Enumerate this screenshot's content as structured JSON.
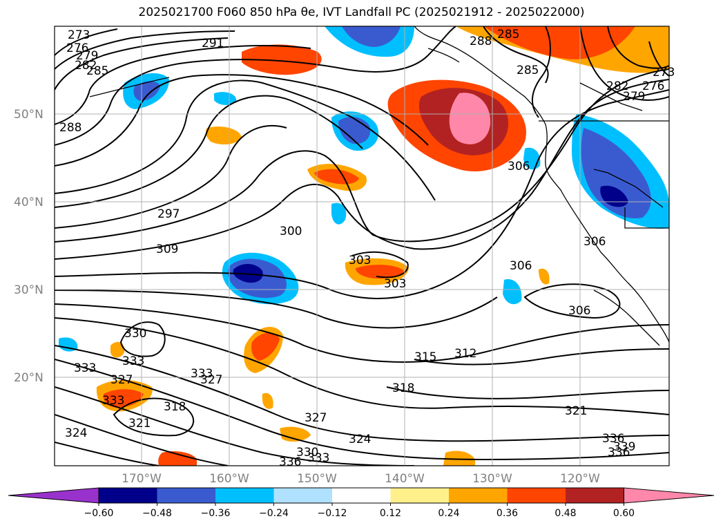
{
  "title": "2025021700 F060 850 hPa θe, IVT Landfall PC (2025021912 - 2025022000)",
  "map": {
    "lat_labels": [
      {
        "value": 50,
        "text": "50°N"
      },
      {
        "value": 40,
        "text": "40°N"
      },
      {
        "value": 30,
        "text": "30°N"
      },
      {
        "value": 20,
        "text": "20°N"
      }
    ],
    "lon_labels": [
      {
        "value": -170,
        "text": "170°W"
      },
      {
        "value": -160,
        "text": "160°W"
      },
      {
        "value": -150,
        "text": "150°W"
      },
      {
        "value": -140,
        "text": "140°W"
      },
      {
        "value": -130,
        "text": "130°W"
      },
      {
        "value": -120,
        "text": "120°W"
      }
    ],
    "contour_labels": [
      "273",
      "276",
      "279",
      "282",
      "285",
      "288",
      "291",
      "285",
      "288",
      "282",
      "285",
      "279",
      "276",
      "273",
      "297",
      "300",
      "303",
      "303",
      "306",
      "306",
      "306",
      "306",
      "309",
      "312",
      "315",
      "318",
      "321",
      "324",
      "327",
      "327",
      "330",
      "330",
      "333",
      "333",
      "333",
      "333",
      "336",
      "336",
      "339",
      "318",
      "321",
      "324",
      "327",
      "333",
      "336"
    ]
  },
  "colorbar": {
    "ticks": [
      "−0.60",
      "−0.48",
      "−0.36",
      "−0.24",
      "−0.12",
      "0.12",
      "0.24",
      "0.36",
      "0.48",
      "0.60"
    ],
    "colors": [
      "#9932cc",
      "#00008b",
      "#3a5bd0",
      "#00bfff",
      "#b0e2ff",
      "#ffffff",
      "#fff08c",
      "#ffa500",
      "#ff4500",
      "#b22222",
      "#ff88aa"
    ]
  }
}
